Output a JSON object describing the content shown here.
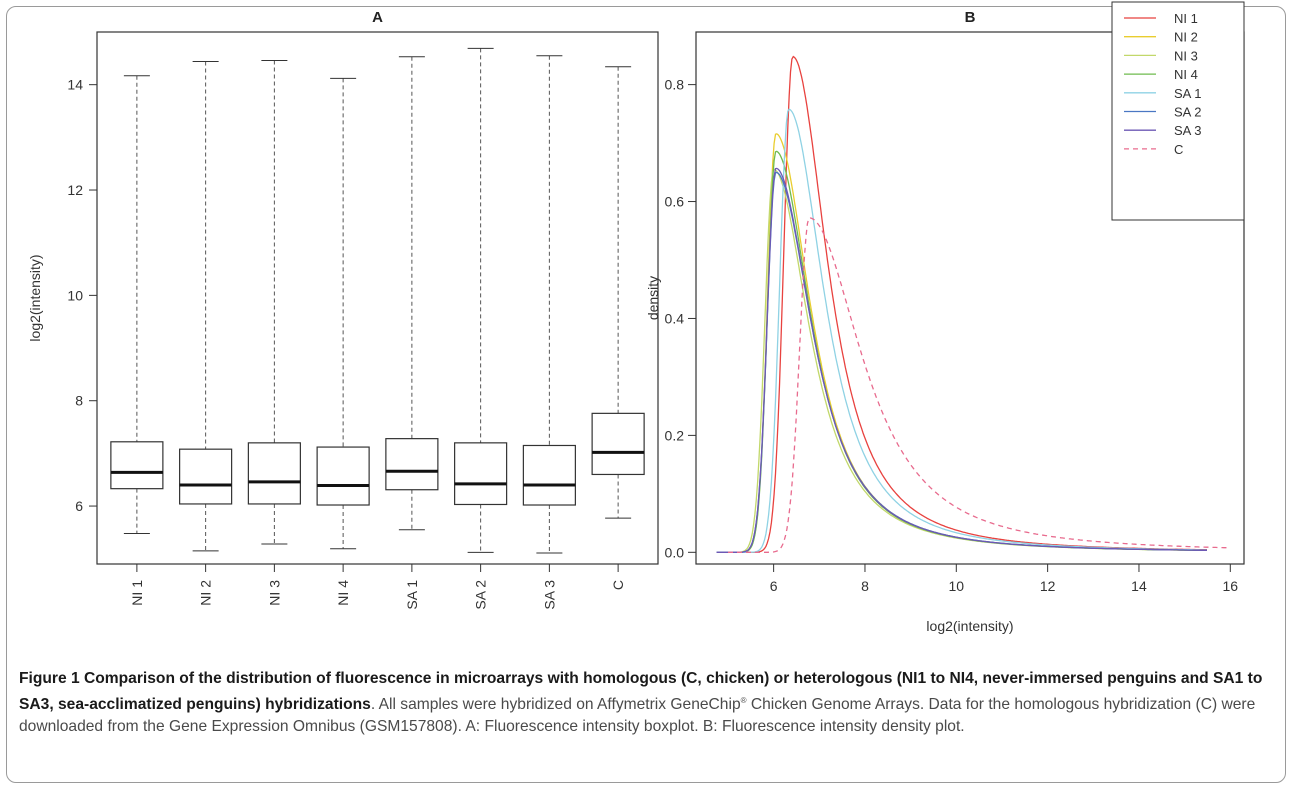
{
  "chart_data": [
    {
      "type": "boxplot",
      "title": "A",
      "ylabel": "log2(intensity)",
      "ylim": [
        4.9,
        15.0
      ],
      "yticks": [
        6,
        8,
        10,
        12,
        14
      ],
      "categories": [
        "NI 1",
        "NI 2",
        "NI 3",
        "NI 4",
        "SA 1",
        "SA 2",
        "SA 3",
        "C"
      ],
      "boxes": [
        {
          "label": "NI 1",
          "min": 5.48,
          "q1": 6.33,
          "median": 6.64,
          "q3": 7.22,
          "max": 14.17
        },
        {
          "label": "NI 2",
          "min": 5.15,
          "q1": 6.04,
          "median": 6.4,
          "q3": 7.08,
          "max": 14.44
        },
        {
          "label": "NI 3",
          "min": 5.28,
          "q1": 6.04,
          "median": 6.46,
          "q3": 7.2,
          "max": 14.46
        },
        {
          "label": "NI 4",
          "min": 5.19,
          "q1": 6.02,
          "median": 6.39,
          "q3": 7.12,
          "max": 14.12
        },
        {
          "label": "SA 1",
          "min": 5.55,
          "q1": 6.31,
          "median": 6.66,
          "q3": 7.28,
          "max": 14.53
        },
        {
          "label": "SA 2",
          "min": 5.12,
          "q1": 6.03,
          "median": 6.42,
          "q3": 7.2,
          "max": 14.69
        },
        {
          "label": "SA 3",
          "min": 5.11,
          "q1": 6.02,
          "median": 6.4,
          "q3": 7.15,
          "max": 14.55
        },
        {
          "label": "C",
          "min": 5.77,
          "q1": 6.6,
          "median": 7.02,
          "q3": 7.76,
          "max": 14.34
        }
      ]
    },
    {
      "type": "line",
      "title": "B",
      "xlabel": "log2(intensity)",
      "ylabel": "density",
      "xlim": [
        4.3,
        16.3
      ],
      "ylim": [
        -0.02,
        0.89
      ],
      "xticks": [
        6,
        8,
        10,
        12,
        14,
        16
      ],
      "yticks": [
        0.0,
        0.2,
        0.4,
        0.6,
        0.8
      ],
      "legend_position": "top-right",
      "series": [
        {
          "name": "NI 1",
          "color": "#e8423f",
          "dashed": false,
          "start": 4.75,
          "end": 15.5,
          "peak_x": 6.42,
          "peak_y": 0.848,
          "rise": 0.28,
          "decay": 1.02
        },
        {
          "name": "NI 2",
          "color": "#e9cd2f",
          "dashed": false,
          "start": 4.75,
          "end": 15.5,
          "peak_x": 6.05,
          "peak_y": 0.716,
          "rise": 0.26,
          "decay": 1.02
        },
        {
          "name": "NI 3",
          "color": "#c2d86a",
          "dashed": false,
          "start": 4.75,
          "end": 15.5,
          "peak_x": 6.0,
          "peak_y": 0.655,
          "rise": 0.27,
          "decay": 1.05
        },
        {
          "name": "NI 4",
          "color": "#6fbb4e",
          "dashed": false,
          "start": 4.75,
          "end": 15.5,
          "peak_x": 6.05,
          "peak_y": 0.686,
          "rise": 0.26,
          "decay": 1.03
        },
        {
          "name": "SA 1",
          "color": "#8fd2e4",
          "dashed": false,
          "start": 4.75,
          "end": 15.5,
          "peak_x": 6.33,
          "peak_y": 0.758,
          "rise": 0.28,
          "decay": 1.04
        },
        {
          "name": "SA 2",
          "color": "#4a77c3",
          "dashed": false,
          "start": 4.75,
          "end": 15.5,
          "peak_x": 6.05,
          "peak_y": 0.65,
          "rise": 0.27,
          "decay": 1.07
        },
        {
          "name": "SA 3",
          "color": "#6d58b4",
          "dashed": false,
          "start": 4.75,
          "end": 15.5,
          "peak_x": 6.05,
          "peak_y": 0.657,
          "rise": 0.27,
          "decay": 1.06
        },
        {
          "name": "C",
          "color": "#e86b8e",
          "dashed": true,
          "start": 5.0,
          "end": 16.0,
          "peak_x": 6.78,
          "peak_y": 0.572,
          "rise": 0.3,
          "decay": 1.55
        }
      ]
    }
  ],
  "caption": {
    "label": "Figure 1",
    "title": "Comparison of the distribution of fluorescence in microarrays with homologous (C, chicken) or heterologous (NI1 to NI4, never-immersed penguins and SA1 to SA3, sea-acclimatized penguins) hybridizations",
    "body_before_mark": ". All samples were hybridized on Affymetrix GeneChip",
    "mark": "®",
    "body_after_mark": " Chicken Genome Arrays. Data for the homologous hybridization (C) were downloaded from the Gene Expression Omnibus (GSM157808). A: Fluorescence intensity boxplot. B: Fluorescence intensity density plot."
  }
}
